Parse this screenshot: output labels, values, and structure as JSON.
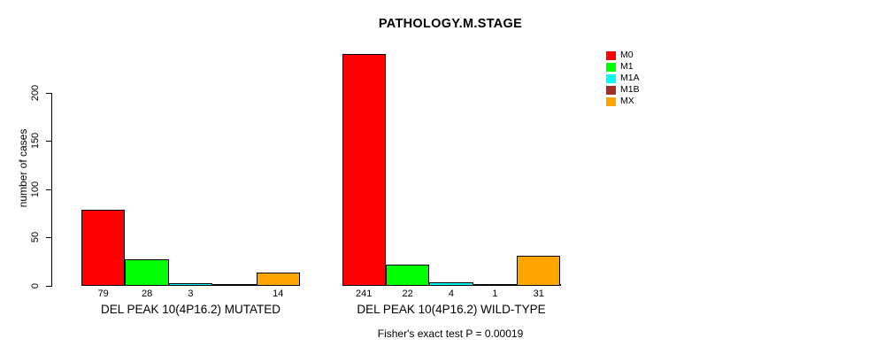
{
  "title": "PATHOLOGY.M.STAGE",
  "chart_data": {
    "type": "bar",
    "title": "PATHOLOGY.M.STAGE",
    "xlabel": "",
    "ylabel": "number of cases",
    "annotation": "Fisher's exact test P = 0.00019",
    "y_ticks": [
      0,
      50,
      100,
      150,
      200
    ],
    "ylim": [
      0,
      245
    ],
    "grid": false,
    "legend_position": "right",
    "categories": [
      "DEL PEAK 10(4P16.2) MUTATED",
      "DEL PEAK 10(4P16.2) WILD-TYPE"
    ],
    "series": [
      {
        "name": "M0",
        "color": "#FF0000",
        "values": [
          79,
          241
        ]
      },
      {
        "name": "M1",
        "color": "#00FF00",
        "values": [
          28,
          22
        ]
      },
      {
        "name": "M1A",
        "color": "#00FFFF",
        "values": [
          3,
          4
        ]
      },
      {
        "name": "M1B",
        "color": "#A52A2A",
        "values": [
          0,
          1
        ]
      },
      {
        "name": "MX",
        "color": "#FFA500",
        "values": [
          14,
          31
        ]
      }
    ],
    "bar_value_labels": [
      [
        "79",
        "28",
        "3",
        "",
        "14"
      ],
      [
        "241",
        "22",
        "4",
        "1",
        "31"
      ]
    ]
  }
}
